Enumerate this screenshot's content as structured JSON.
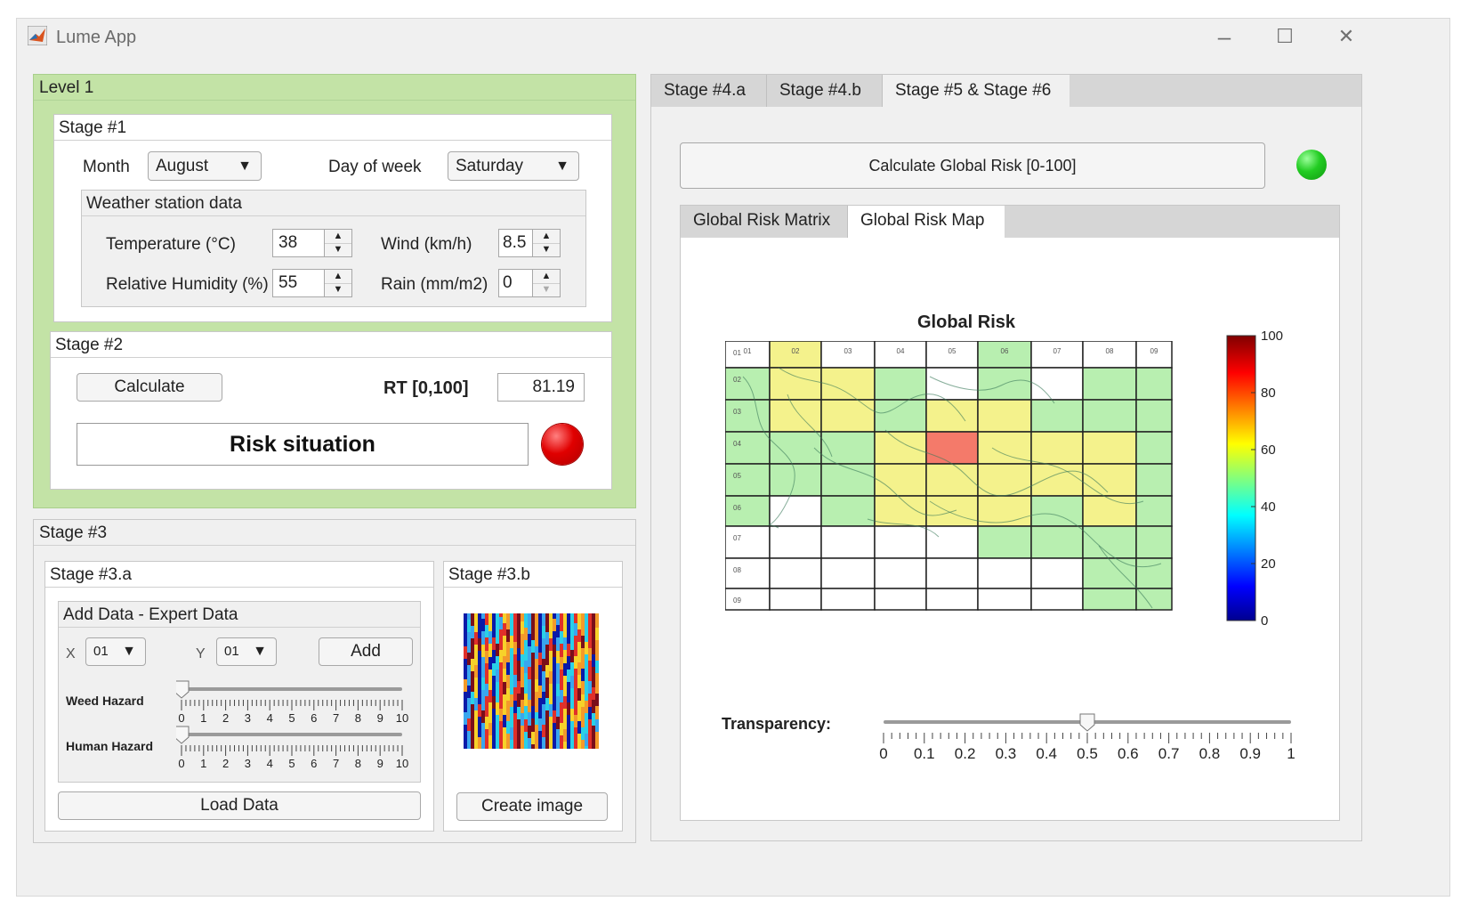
{
  "window": {
    "title": "Lume App",
    "controls": [
      "–",
      "☐",
      "✕"
    ]
  },
  "level1": {
    "title": "Level 1",
    "stage1": {
      "title": "Stage #1",
      "month_label": "Month",
      "month_value": "August",
      "day_label": "Day of week",
      "day_value": "Saturday",
      "weather": {
        "title": "Weather station data",
        "temperature_label": "Temperature (°C)",
        "temperature_value": "38",
        "wind_label": "Wind (km/h)",
        "wind_value": "8.5",
        "humidity_label": "Relative Humidity (%)",
        "humidity_value": "55",
        "rain_label": "Rain (mm/m2)",
        "rain_value": "0"
      }
    },
    "stage2": {
      "title": "Stage #2",
      "calculate_label": "Calculate",
      "rt_label": "RT [0,100]",
      "rt_value": "81.19",
      "risk_label": "Risk situation",
      "risk_color": "#e00000"
    }
  },
  "stage3": {
    "title": "Stage #3",
    "a": {
      "title": "Stage #3.a",
      "expert": {
        "title": "Add Data - Expert Data",
        "x_label": "X",
        "x_value": "01",
        "y_label": "Y",
        "y_value": "01",
        "add_label": "Add",
        "weed_label": "Weed Hazard",
        "human_label": "Human Hazard",
        "weed_value": 0,
        "human_value": 0,
        "slider_ticks": [
          "0",
          "1",
          "2",
          "3",
          "4",
          "5",
          "6",
          "7",
          "8",
          "9",
          "10"
        ]
      },
      "load_label": "Load Data"
    },
    "b": {
      "title": "Stage #3.b",
      "create_label": "Create image"
    }
  },
  "right": {
    "tabs": [
      "Stage #4.a",
      "Stage #4.b",
      "Stage #5 & Stage #6"
    ],
    "active_tab": "Stage #5 & Stage #6",
    "calc_global_label": "Calculate Global Risk [0-100]",
    "status_color": "#22cc22",
    "subtabs": [
      "Global Risk Matrix",
      "Global Risk Map"
    ],
    "active_subtab": "Global Risk Map",
    "map_title": "Global Risk",
    "colorbar_ticks": [
      "100",
      "80",
      "60",
      "40",
      "20",
      "0"
    ],
    "transparency_label": "Transparency:",
    "transparency_value": 0.5,
    "transparency_ticks": [
      "0",
      "0.1",
      "0.2",
      "0.3",
      "0.4",
      "0.5",
      "0.6",
      "0.7",
      "0.8",
      "0.9",
      "1"
    ],
    "grid_row_labels": [
      "01",
      "02",
      "03",
      "04",
      "05",
      "06",
      "07",
      "08",
      "09"
    ],
    "grid_col_labels": [
      "01",
      "02",
      "03",
      "04",
      "05",
      "06",
      "07",
      "08",
      "09"
    ],
    "risk_grid": [
      [
        "none",
        "yellow",
        "none",
        "none",
        "none",
        "lgreen",
        "none",
        "none",
        "none"
      ],
      [
        "lgreen",
        "yellow",
        "yellow",
        "lgreen",
        "none",
        "lgreen",
        "none",
        "lgreen",
        "lgreen"
      ],
      [
        "lgreen",
        "yellow",
        "yellow",
        "lgreen",
        "yellow",
        "yellow",
        "lgreen",
        "lgreen",
        "lgreen"
      ],
      [
        "lgreen",
        "lgreen",
        "lgreen",
        "yellow",
        "red",
        "yellow",
        "yellow",
        "yellow",
        "lgreen"
      ],
      [
        "lgreen",
        "lgreen",
        "lgreen",
        "yellow",
        "yellow",
        "yellow",
        "yellow",
        "yellow",
        "lgreen"
      ],
      [
        "lgreen",
        "none",
        "lgreen",
        "yellow",
        "yellow",
        "yellow",
        "lgreen",
        "yellow",
        "lgreen"
      ],
      [
        "none",
        "none",
        "none",
        "none",
        "none",
        "lgreen",
        "lgreen",
        "lgreen",
        "lgreen"
      ],
      [
        "none",
        "none",
        "none",
        "none",
        "none",
        "none",
        "none",
        "lgreen",
        "lgreen"
      ],
      [
        "none",
        "none",
        "none",
        "none",
        "none",
        "none",
        "none",
        "lgreen",
        "lgreen"
      ]
    ],
    "risk_colors": {
      "yellow": "#f4f28c",
      "lgreen": "#b8efb0",
      "red": "#f47a6a",
      "none": "#ffffff"
    }
  }
}
